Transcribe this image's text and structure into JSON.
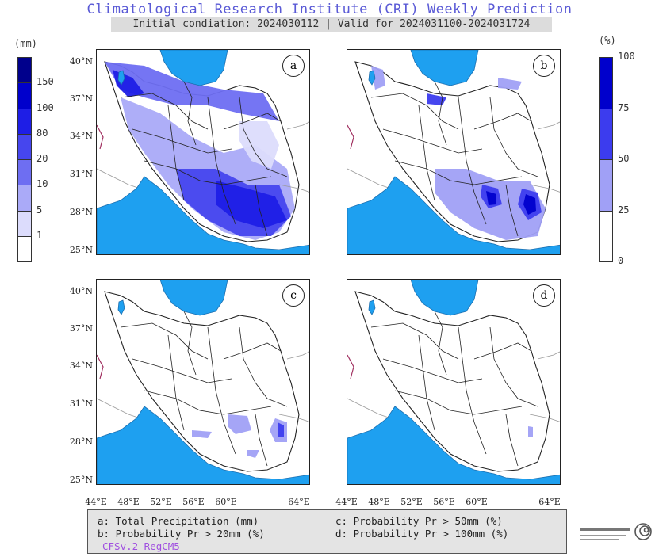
{
  "header": {
    "title": "Climatological Research Institute (CRI) Weekly Prediction",
    "subtitle": "Initial condiation: 2024030112 | Valid for 2024031100-2024031724"
  },
  "left_colorbar": {
    "units": "(mm)",
    "labels": [
      "150",
      "100",
      "80",
      "20",
      "10",
      "5",
      "1"
    ],
    "colors": [
      "#00008c",
      "#0000cc",
      "#1e1ee6",
      "#4646ee",
      "#6e6ef2",
      "#aaaaf8",
      "#dcdcfc",
      "#ffffff"
    ]
  },
  "right_colorbar": {
    "units": "(%)",
    "labels": [
      "100",
      "75",
      "50",
      "25",
      "0"
    ],
    "colors": [
      "#0000cc",
      "#3c3cee",
      "#a0a0f6",
      "#ffffff"
    ]
  },
  "panels": [
    {
      "id": "a",
      "label": "a"
    },
    {
      "id": "b",
      "label": "b"
    },
    {
      "id": "c",
      "label": "c"
    },
    {
      "id": "d",
      "label": "d"
    }
  ],
  "axes": {
    "lat_ticks": [
      "40°N",
      "37°N",
      "34°N",
      "31°N",
      "28°N",
      "25°N"
    ],
    "lon_ticks": [
      "44°E",
      "48°E",
      "52°E",
      "56°E",
      "60°E",
      "64°E"
    ]
  },
  "legend": {
    "a": "a: Total Precipitation (mm)",
    "b": "b: Probability Pr > 20mm (%)",
    "c": "c: Probability Pr > 50mm (%)",
    "d": "d: Probability Pr > 100mm (%)",
    "model": "CFSv.2-RegCM5"
  },
  "colors": {
    "sea": "#1ea0f0",
    "border": "#222222",
    "title": "#5a5ad6"
  }
}
